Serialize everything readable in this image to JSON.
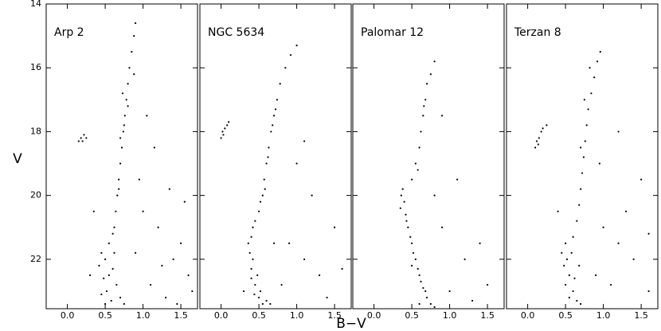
{
  "chart_data": [
    {
      "type": "scatter",
      "title": "Arp 2",
      "ylabel": "V",
      "color": "#000000",
      "xlim": [
        -0.28,
        1.72
      ],
      "ylim": [
        23.55,
        14
      ],
      "xticks": [
        {
          "value": 0,
          "label": "0.0"
        },
        0.5,
        {
          "value": 1,
          "label": "1.0"
        },
        1.5
      ],
      "yticks": [
        14,
        16,
        18,
        20,
        22
      ],
      "x": [
        0.62,
        0.64,
        0.66,
        0.68,
        0.7,
        0.72,
        0.74,
        0.76,
        0.78,
        0.8,
        0.82,
        0.85,
        0.88,
        0.9,
        0.75,
        0.7,
        0.8,
        0.68,
        0.73,
        0.88,
        0.15,
        0.18,
        0.22,
        0.2,
        0.25,
        0.45,
        0.5,
        0.55,
        0.6,
        0.48,
        0.52,
        0.58,
        0.65,
        0.7,
        0.42,
        0.55,
        0.62,
        0.75,
        0.5,
        0.6,
        0.45,
        1.0,
        1.2,
        1.4,
        1.6,
        1.1,
        1.3,
        1.5,
        0.95,
        1.15,
        1.05,
        1.35,
        1.65,
        0.9,
        1.25,
        1.45,
        0.35,
        0.3,
        1.55
      ],
      "y": [
        21.0,
        20.5,
        20.0,
        19.5,
        19.0,
        18.5,
        18.0,
        17.5,
        17.0,
        16.5,
        16.0,
        15.5,
        15.0,
        14.6,
        17.8,
        18.2,
        17.2,
        19.8,
        16.8,
        16.2,
        18.3,
        18.2,
        18.1,
        18.3,
        18.2,
        21.8,
        22.0,
        21.5,
        22.3,
        22.6,
        23.0,
        23.3,
        22.8,
        23.2,
        22.2,
        22.5,
        21.8,
        23.4,
        23.4,
        21.2,
        23.1,
        20.5,
        21.0,
        22.0,
        22.5,
        22.8,
        23.2,
        21.5,
        19.5,
        18.5,
        17.5,
        19.8,
        23.0,
        21.8,
        22.2,
        23.4,
        20.5,
        22.5,
        20.2
      ]
    },
    {
      "type": "scatter",
      "title": "NGC 5634",
      "xlabel": "B−V",
      "color": "#000000",
      "xlim": [
        -0.28,
        1.72
      ],
      "ylim": [
        23.55,
        14
      ],
      "xticks": [
        {
          "value": 0,
          "label": "0.0"
        },
        0.5,
        {
          "value": 1,
          "label": "1.0"
        },
        1.5
      ],
      "yticks": [
        14,
        16,
        18,
        20,
        22
      ],
      "x": [
        0.0,
        0.02,
        0.05,
        0.08,
        0.1,
        0.03,
        0.5,
        0.52,
        0.55,
        0.57,
        0.6,
        0.63,
        0.66,
        0.7,
        0.74,
        0.78,
        0.85,
        0.92,
        1.0,
        0.72,
        0.68,
        0.58,
        0.62,
        0.45,
        0.42,
        0.4,
        0.38,
        0.4,
        0.45,
        0.5,
        0.55,
        0.42,
        0.48,
        0.52,
        0.6,
        0.36,
        0.44,
        0.65,
        0.4,
        0.9,
        1.1,
        1.3,
        1.5,
        1.2,
        1.0,
        0.8,
        1.4,
        0.7,
        1.6,
        0.3,
        1.1
      ],
      "y": [
        18.2,
        18.0,
        17.9,
        17.8,
        17.7,
        18.1,
        20.5,
        20.2,
        20.0,
        19.5,
        19.0,
        18.5,
        18.0,
        17.5,
        17.0,
        16.5,
        16.0,
        15.6,
        15.3,
        17.3,
        17.8,
        19.8,
        18.8,
        20.8,
        21.0,
        21.3,
        21.8,
        22.3,
        22.8,
        23.2,
        23.4,
        22.0,
        22.5,
        23.0,
        23.3,
        21.5,
        23.1,
        23.4,
        22.6,
        21.5,
        22.0,
        22.5,
        21.0,
        20.0,
        19.0,
        22.8,
        23.2,
        21.5,
        22.3,
        23.0,
        18.3
      ]
    },
    {
      "type": "scatter",
      "title": "Palomar 12",
      "color": "#000000",
      "xlim": [
        -0.28,
        1.72
      ],
      "ylim": [
        23.55,
        14
      ],
      "xticks": [
        {
          "value": 0,
          "label": "0.0"
        },
        0.5,
        {
          "value": 1,
          "label": "1.0"
        },
        1.5
      ],
      "yticks": [
        14,
        16,
        18,
        20,
        22
      ],
      "x": [
        0.5,
        0.55,
        0.6,
        0.62,
        0.65,
        0.68,
        0.7,
        0.75,
        0.8,
        0.58,
        0.66,
        0.38,
        0.4,
        0.42,
        0.45,
        0.5,
        0.55,
        0.6,
        0.65,
        0.7,
        0.75,
        0.36,
        0.43,
        0.48,
        0.52,
        0.58,
        0.62,
        0.68,
        0.8,
        0.35,
        0.5,
        0.9,
        1.2,
        1.0,
        1.4,
        0.8,
        1.1,
        1.3,
        0.6,
        0.9,
        1.5
      ],
      "y": [
        19.5,
        19.0,
        18.5,
        18.0,
        17.5,
        17.0,
        16.5,
        16.2,
        15.8,
        19.2,
        17.2,
        19.8,
        20.2,
        20.6,
        21.0,
        21.5,
        22.0,
        22.5,
        22.9,
        23.2,
        23.4,
        20.0,
        20.8,
        21.3,
        21.8,
        22.3,
        22.7,
        23.0,
        23.5,
        20.4,
        22.2,
        21.0,
        22.0,
        23.0,
        21.5,
        20.0,
        19.5,
        23.3,
        23.4,
        17.5,
        22.8
      ]
    },
    {
      "type": "scatter",
      "title": "Terzan 8",
      "color": "#000000",
      "xlim": [
        -0.28,
        1.72
      ],
      "ylim": [
        23.55,
        14
      ],
      "xticks": [
        {
          "value": 0,
          "label": "0.0"
        },
        0.5,
        {
          "value": 1,
          "label": "1.0"
        },
        1.5
      ],
      "yticks": [
        14,
        16,
        18,
        20,
        22
      ],
      "x": [
        0.1,
        0.12,
        0.15,
        0.18,
        0.2,
        0.25,
        0.14,
        0.65,
        0.68,
        0.7,
        0.72,
        0.74,
        0.76,
        0.78,
        0.8,
        0.84,
        0.88,
        0.92,
        0.96,
        0.7,
        0.82,
        0.75,
        0.5,
        0.52,
        0.55,
        0.6,
        0.65,
        0.48,
        0.58,
        0.62,
        0.7,
        0.55,
        0.5,
        0.45,
        0.68,
        0.6,
        1.0,
        1.2,
        1.4,
        1.6,
        1.1,
        1.3,
        0.95,
        1.5,
        1.2,
        0.4,
        1.6,
        0.9
      ],
      "y": [
        18.5,
        18.3,
        18.2,
        18.0,
        17.9,
        17.8,
        18.4,
        20.8,
        20.3,
        19.8,
        19.3,
        18.8,
        18.3,
        17.8,
        17.3,
        16.8,
        16.3,
        15.8,
        15.5,
        18.5,
        16.0,
        17.0,
        21.5,
        22.0,
        22.5,
        23.0,
        23.3,
        22.2,
        21.8,
        22.6,
        23.4,
        23.2,
        22.8,
        21.8,
        22.2,
        21.3,
        21.0,
        21.5,
        22.0,
        21.2,
        22.8,
        20.5,
        19.0,
        19.5,
        18.0,
        20.5,
        23.0,
        22.5
      ]
    }
  ]
}
